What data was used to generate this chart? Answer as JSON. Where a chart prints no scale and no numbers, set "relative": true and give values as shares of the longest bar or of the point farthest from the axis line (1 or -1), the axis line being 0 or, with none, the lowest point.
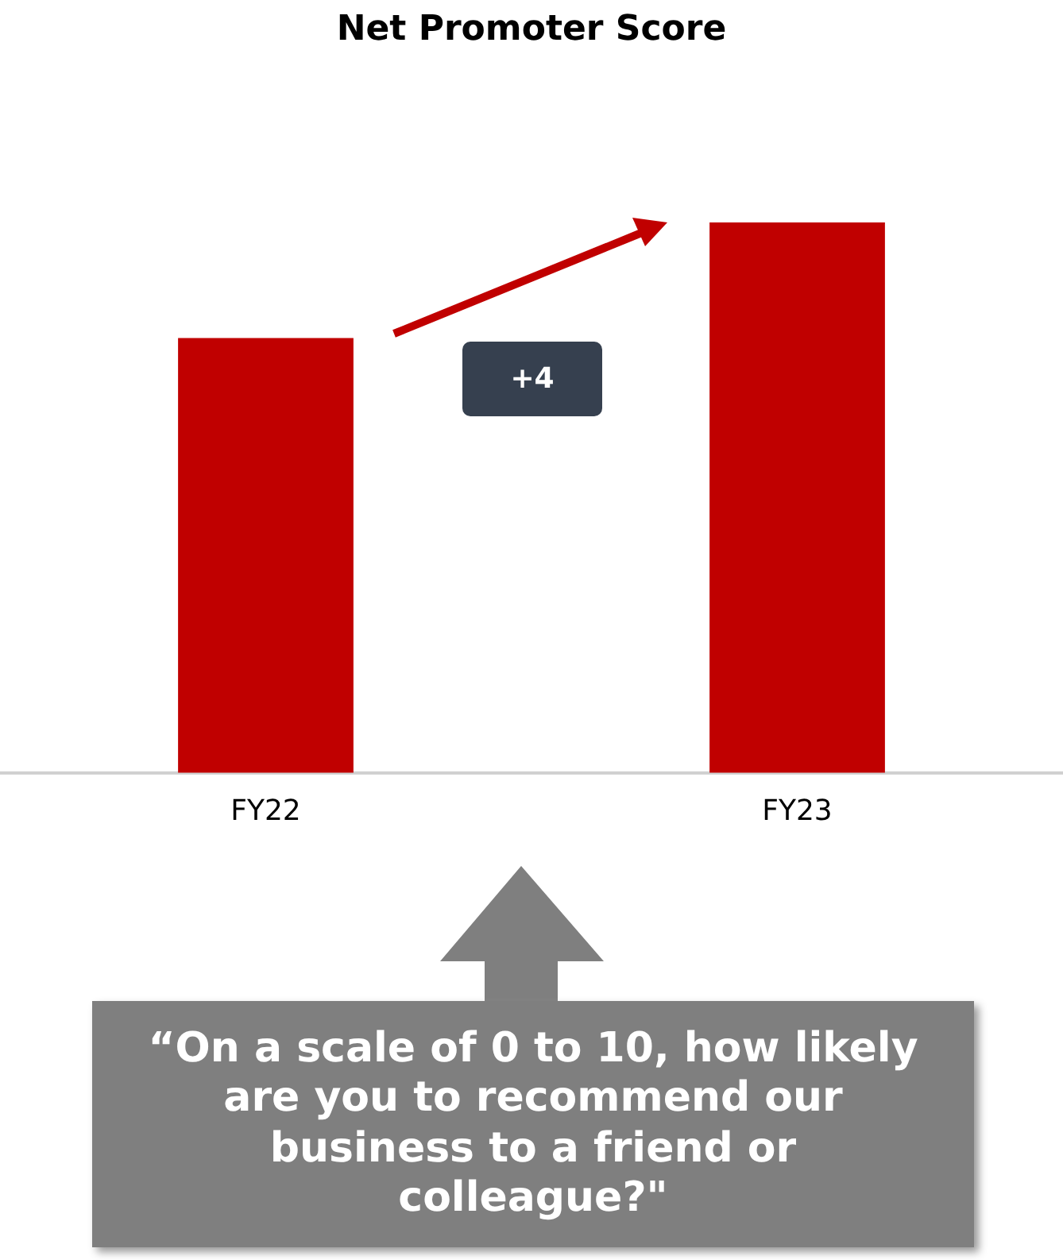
{
  "chart_data": {
    "type": "bar",
    "title": "Net Promoter Score",
    "categories": [
      "FY22",
      "FY23"
    ],
    "values": [
      0.79,
      1
    ],
    "color": "#c00000",
    "relative": true,
    "annotations": [
      "+4",
      "“On a scale of 0 to 10, how likely are you to recommend our business to a friend or colleague?\""
    ]
  }
}
